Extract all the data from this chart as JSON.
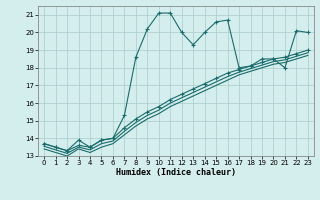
{
  "xlabel": "Humidex (Indice chaleur)",
  "background_color": "#d4eeed",
  "grid_color": "#aacccc",
  "line_color": "#1a6b6b",
  "xlim": [
    -0.5,
    23.5
  ],
  "ylim": [
    13,
    21.5
  ],
  "yticks": [
    13,
    14,
    15,
    16,
    17,
    18,
    19,
    20,
    21
  ],
  "xticks": [
    0,
    1,
    2,
    3,
    4,
    5,
    6,
    7,
    8,
    9,
    10,
    11,
    12,
    13,
    14,
    15,
    16,
    17,
    18,
    19,
    20,
    21,
    22,
    23
  ],
  "x": [
    0,
    1,
    2,
    3,
    4,
    5,
    6,
    7,
    8,
    9,
    10,
    11,
    12,
    13,
    14,
    15,
    16,
    17,
    18,
    19,
    20,
    21,
    22,
    23
  ],
  "line1": [
    13.7,
    13.5,
    13.3,
    13.9,
    13.5,
    13.9,
    14.0,
    15.3,
    18.6,
    20.2,
    21.1,
    21.1,
    20.0,
    19.3,
    20.0,
    20.6,
    20.7,
    18.0,
    18.1,
    18.5,
    18.5,
    18.0,
    20.1,
    20.0
  ],
  "line2": [
    13.7,
    13.5,
    13.3,
    13.6,
    13.5,
    13.9,
    14.0,
    14.6,
    15.1,
    15.5,
    15.8,
    16.2,
    16.5,
    16.8,
    17.1,
    17.4,
    17.7,
    17.9,
    18.1,
    18.3,
    18.5,
    18.6,
    18.8,
    19.0
  ],
  "line3": [
    13.4,
    13.2,
    13.0,
    13.4,
    13.2,
    13.5,
    13.7,
    14.2,
    14.7,
    15.1,
    15.4,
    15.8,
    16.1,
    16.4,
    16.7,
    17.0,
    17.3,
    17.6,
    17.8,
    18.0,
    18.2,
    18.3,
    18.5,
    18.7
  ],
  "line4": [
    13.55,
    13.35,
    13.15,
    13.5,
    13.35,
    13.7,
    13.85,
    14.4,
    14.9,
    15.3,
    15.6,
    16.0,
    16.3,
    16.6,
    16.9,
    17.2,
    17.5,
    17.75,
    17.95,
    18.15,
    18.35,
    18.45,
    18.65,
    18.85
  ]
}
